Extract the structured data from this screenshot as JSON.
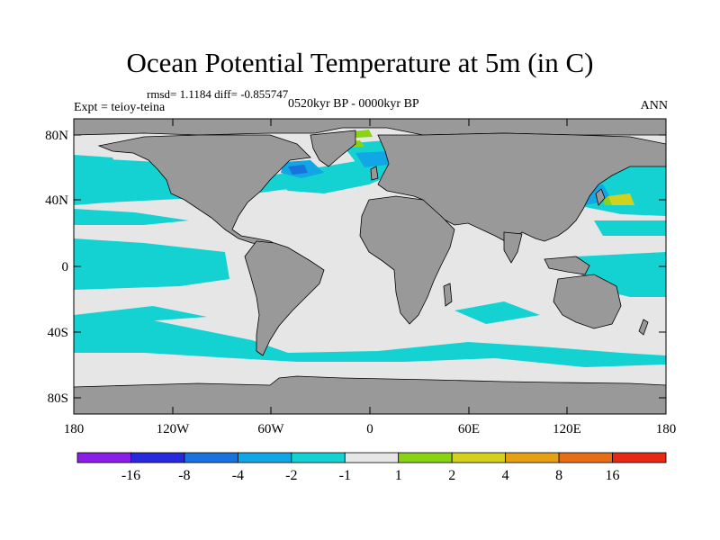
{
  "header": {
    "title": "Ocean Potential Temperature at 5m (in C)",
    "stats": "rmsd= 1.1184 diff= -0.855747",
    "period": "0520kyr BP - 0000kyr BP",
    "expt": "Expt = teioy-teina",
    "season": "ANN"
  },
  "axes": {
    "lat_labels": [
      "80N",
      "40N",
      "0",
      "40S",
      "80S"
    ],
    "lon_labels": [
      "180",
      "120W",
      "60W",
      "0",
      "60E",
      "120E",
      "180"
    ]
  },
  "colorbar": {
    "labels": [
      "-16",
      "-8",
      "-4",
      "-2",
      "-1",
      "1",
      "2",
      "4",
      "8",
      "16"
    ],
    "colors": [
      "#8a1ee6",
      "#2828dc",
      "#1873dc",
      "#11a6e6",
      "#14d2d2",
      "#e6e6e6",
      "#8ad214",
      "#d2d21e",
      "#e6a014",
      "#e66e14",
      "#e62814"
    ]
  },
  "colors": {
    "land": "#999999",
    "neutral": "#e6e6e6",
    "cyan": "#14d2d2",
    "lightblue": "#11a6e6",
    "blue": "#1873dc",
    "green": "#8ad214",
    "yellow": "#d2d21e"
  }
}
